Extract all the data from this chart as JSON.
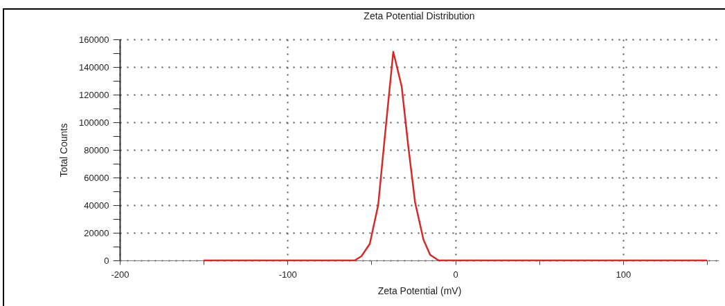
{
  "chart_data": {
    "type": "line",
    "title": "Zeta Potential Distribution",
    "xlabel": "Zeta Potential (mV)",
    "ylabel": "Total Counts",
    "x": [
      -150,
      -60,
      -56,
      -51,
      -46,
      -42,
      -37,
      -32,
      -28,
      -24,
      -19,
      -15,
      -10,
      150
    ],
    "series": [
      {
        "color": "#d42a2a",
        "values": [
          0,
          0,
          3000,
          12000,
          40000,
          90000,
          151000,
          126000,
          82000,
          42000,
          15000,
          4000,
          0,
          0
        ]
      }
    ],
    "xlim": [
      -200,
      157
    ],
    "xticks": [
      -200,
      {
        "value": -150,
        "label": null
      },
      -100,
      {
        "value": -50,
        "label": null
      },
      0,
      {
        "value": 50,
        "label": null
      },
      100,
      {
        "value": 150,
        "label": null
      }
    ],
    "ylim": [
      0,
      160000
    ],
    "yticks": [
      0,
      {
        "value": 10000,
        "label": null
      },
      20000,
      {
        "value": 30000,
        "label": null
      },
      40000,
      {
        "value": 50000,
        "label": null
      },
      60000,
      {
        "value": 70000,
        "label": null
      },
      80000,
      {
        "value": 90000,
        "label": null
      },
      100000,
      {
        "value": 110000,
        "label": null
      },
      120000,
      {
        "value": 130000,
        "label": null
      },
      140000,
      {
        "value": 150000,
        "label": null
      },
      160000
    ],
    "grid": true,
    "marker": "none",
    "line_style": "solid"
  }
}
